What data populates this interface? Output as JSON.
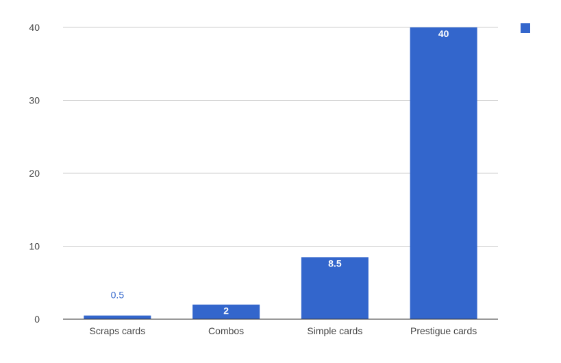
{
  "chart_data": {
    "type": "bar",
    "categories": [
      "Scraps cards",
      "Combos",
      "Simple cards",
      "Prestigue cards"
    ],
    "series": [
      {
        "values": [
          0.5,
          2,
          8.5,
          40
        ],
        "color": "#3366cc"
      }
    ],
    "data_labels": [
      "0.5",
      "2",
      "8.5",
      "40"
    ],
    "yticks": [
      0,
      10,
      20,
      30,
      40
    ],
    "ylim": [
      0,
      40
    ],
    "grid": true,
    "legend": "top-right",
    "title": "",
    "xlabel": "",
    "ylabel": ""
  }
}
